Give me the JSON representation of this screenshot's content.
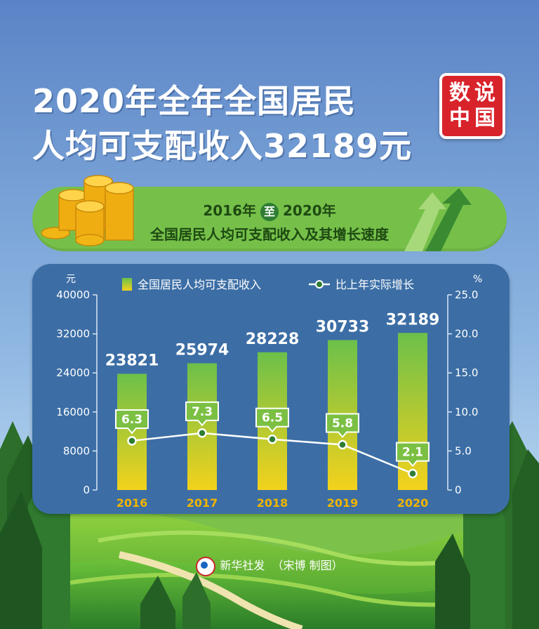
{
  "title": {
    "line1": "2020年全年全国居民",
    "line2": "人均可支配收入32189元"
  },
  "badge": [
    "数",
    "说",
    "中",
    "国"
  ],
  "subtitle": {
    "from": "2016年",
    "connector": "至",
    "to": "2020年",
    "line2": "全国居民人均可支配收入及其增长速度"
  },
  "credit": {
    "agency": "新华社发",
    "author": "（宋博 制图）"
  },
  "colors": {
    "sky_top": "#5c86c8",
    "sky_bottom": "#bfe0f5",
    "panel": "#3c6ea5",
    "bar_top": "#6cc04a",
    "bar_bottom": "#f3d21c",
    "year_label": "#f0b400",
    "label_box": "#7bc043"
  },
  "chart_data": {
    "type": "bar",
    "categories": [
      "2016",
      "2017",
      "2018",
      "2019",
      "2020"
    ],
    "series": [
      {
        "name": "全国居民人均可支配收入",
        "type": "bar",
        "axis": "left",
        "values": [
          23821,
          25974,
          28228,
          30733,
          32189
        ]
      },
      {
        "name": "比上年实际增长",
        "type": "line",
        "axis": "right",
        "values": [
          6.3,
          7.3,
          6.5,
          5.8,
          2.1
        ]
      }
    ],
    "bar_labels": [
      "23821",
      "25974",
      "28228",
      "30733",
      "32189"
    ],
    "line_labels": [
      "6.3",
      "7.3",
      "6.5",
      "5.8",
      "2.1"
    ],
    "y_left": {
      "unit": "元",
      "ticks": [
        "40000",
        "32000",
        "24000",
        "16000",
        "8000",
        "0"
      ],
      "range": [
        0,
        40000
      ]
    },
    "y_right": {
      "unit": "%",
      "ticks": [
        "25.0",
        "20.0",
        "15.0",
        "10.0",
        "5.0",
        "0"
      ],
      "range": [
        0,
        25
      ]
    },
    "legend": {
      "position": "top"
    }
  }
}
